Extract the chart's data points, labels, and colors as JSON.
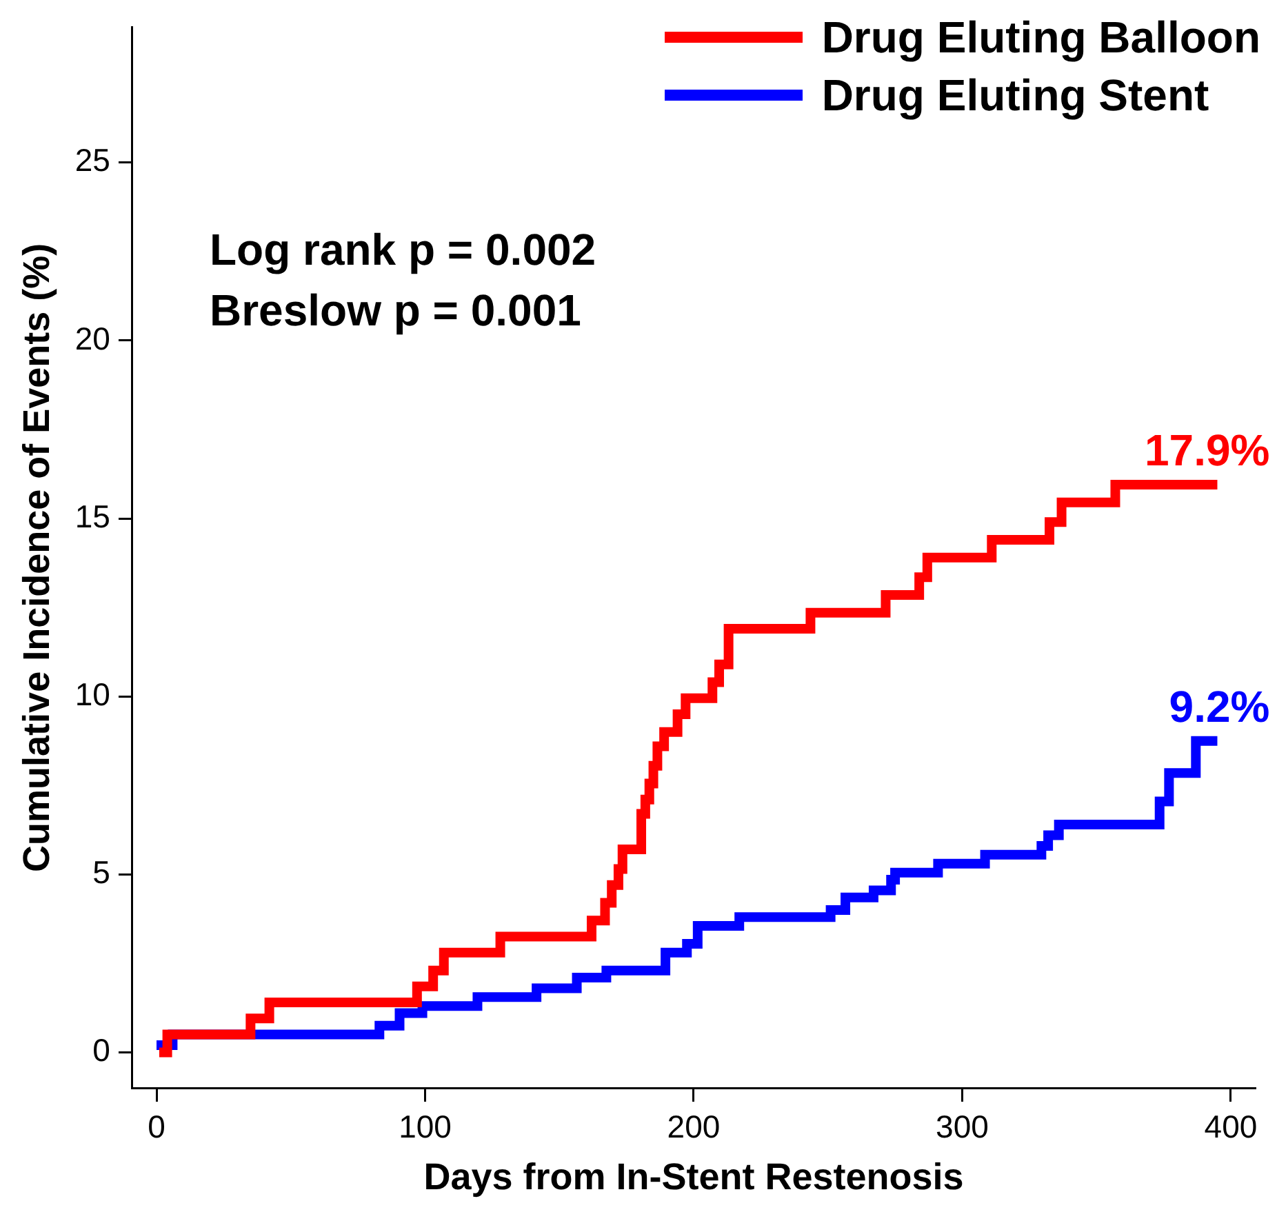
{
  "chart_data": {
    "type": "step",
    "xlabel": "Days from In-Stent Restenosis",
    "ylabel": "Cumulative Incidence of Events (%)",
    "xlim": [
      -9,
      409
    ],
    "xticks": [
      0,
      100,
      200,
      300,
      400
    ],
    "ylim": [
      -1,
      28.8
    ],
    "yticks": [
      0,
      5,
      10,
      15,
      20,
      25
    ],
    "grid": false,
    "legend": "top right",
    "line_style": "solid",
    "marker": "none",
    "series": [
      {
        "name": "Drug Eluting Balloon",
        "color": "#ff0000",
        "x": [
          1,
          4,
          35,
          42,
          97,
          103,
          107,
          128,
          162,
          167,
          169.5,
          172,
          173.5,
          180.5,
          182,
          183.5,
          185,
          186.5,
          189,
          194,
          197,
          207,
          209.5,
          213,
          243.5,
          271.5,
          284,
          287,
          311,
          332.5,
          337,
          357,
          395
        ],
        "values": [
          0,
          0.5,
          0.95,
          1.4,
          1.85,
          2.3,
          2.8,
          3.25,
          3.7,
          4.2,
          4.7,
          5.15,
          5.7,
          6.7,
          7.1,
          7.55,
          8.05,
          8.6,
          9.0,
          9.5,
          9.95,
          10.4,
          10.9,
          11.9,
          12.35,
          12.85,
          13.35,
          13.9,
          14.4,
          14.9,
          15.45,
          15.95,
          15.95
        ]
      },
      {
        "name": "Drug Eluting Stent",
        "color": "#0000ff",
        "x": [
          0,
          6,
          83,
          90.5,
          99,
          119.5,
          141.5,
          156.5,
          167.5,
          189.5,
          197.5,
          201.5,
          217,
          251,
          256.5,
          267,
          273.5,
          275,
          291,
          308.5,
          329.5,
          332,
          336,
          373.5,
          377,
          387,
          395
        ],
        "values": [
          0.2,
          0.5,
          0.75,
          1.1,
          1.3,
          1.55,
          1.8,
          2.1,
          2.3,
          2.8,
          3.05,
          3.55,
          3.8,
          4.0,
          4.35,
          4.55,
          4.85,
          5.05,
          5.3,
          5.55,
          5.8,
          6.1,
          6.4,
          7.05,
          7.85,
          8.75,
          8.75
        ]
      }
    ],
    "annotations": [
      {
        "text": "17.9%",
        "x": 395,
        "y": 15.95
      },
      {
        "text": "9.2%",
        "x": 395,
        "y": 8.75
      },
      "Log rank p = 0.002",
      "Breslow p = 0.001"
    ]
  }
}
